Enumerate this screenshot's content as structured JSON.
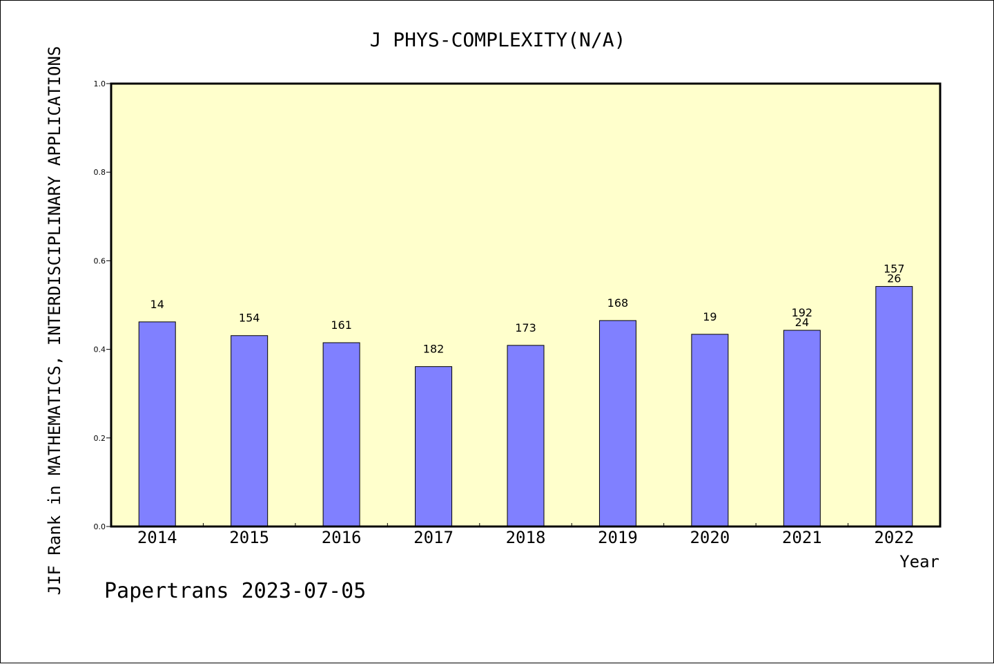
{
  "chart_data": {
    "type": "bar",
    "title": "J PHYS-COMPLEXITY(N/A)",
    "xlabel": "Year",
    "ylabel": "JIF Rank in MATHEMATICS,  INTERDISCIPLINARY APPLICATIONS",
    "footer": "Papertrans 2023-07-05",
    "categories": [
      "2014",
      "2015",
      "2016",
      "2017",
      "2018",
      "2019",
      "2020",
      "2021",
      "2022"
    ],
    "values": [
      0.462,
      0.431,
      0.415,
      0.361,
      0.409,
      0.465,
      0.434,
      0.443,
      0.542
    ],
    "labels": [
      "14",
      "154",
      "161",
      "182",
      "173",
      "168",
      "19",
      "192\n24",
      "157\n26"
    ],
    "ylim": [
      0,
      1.0
    ],
    "yticks": [
      "0.0",
      "0.2",
      "0.4",
      "0.6",
      "0.8",
      "1.0"
    ],
    "grid": false,
    "colors": {
      "plot_background": "#ffffcc",
      "bar_fill": "#8080ff",
      "bar_stroke": "#000000"
    }
  }
}
